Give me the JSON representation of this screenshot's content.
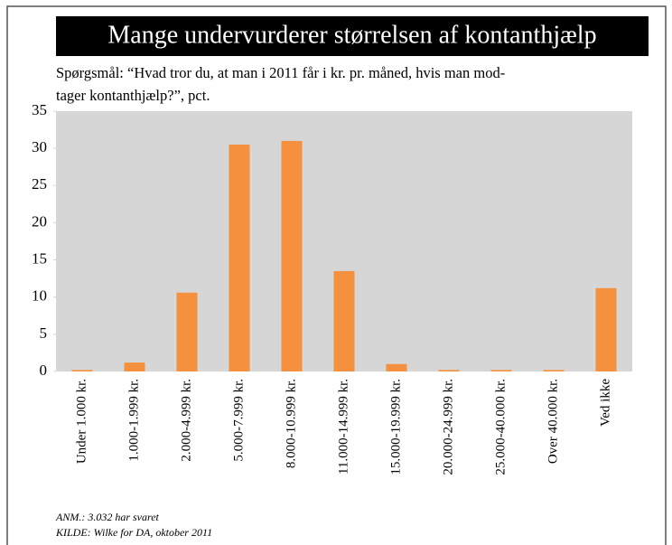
{
  "chart_data": {
    "type": "bar",
    "title": "Mange undervurderer størrelsen af kontanthjælp",
    "subtitle": [
      "Spørgsmål: “Hvad tror du, at man i 2011 får i kr. pr. måned, hvis man mod-",
      "tager kontanthjælp?”, pct."
    ],
    "categories": [
      "Under 1.000 kr.",
      "1.000-1.999 kr.",
      "2.000-4.999 kr.",
      "5.000-7.999 kr.",
      "8.000-10.999 kr.",
      "11.000-14.999 kr.",
      "15.000-19.999 kr.",
      "20.000-24.999 kr.",
      "25.000-40.000 kr.",
      "Over 40.000 kr.",
      "Ved ikke"
    ],
    "values": [
      0.2,
      1.2,
      10.6,
      30.5,
      31.0,
      13.5,
      1.0,
      0.2,
      0.2,
      0.2,
      11.2
    ],
    "color": "#f5913e",
    "ylim": [
      0,
      35
    ],
    "yticks": [
      0,
      5,
      10,
      15,
      20,
      25,
      30,
      35
    ],
    "notes": [
      "ANM.: 3.032 har svaret",
      "KILDE: Wilke for DA, oktober 2011"
    ]
  }
}
